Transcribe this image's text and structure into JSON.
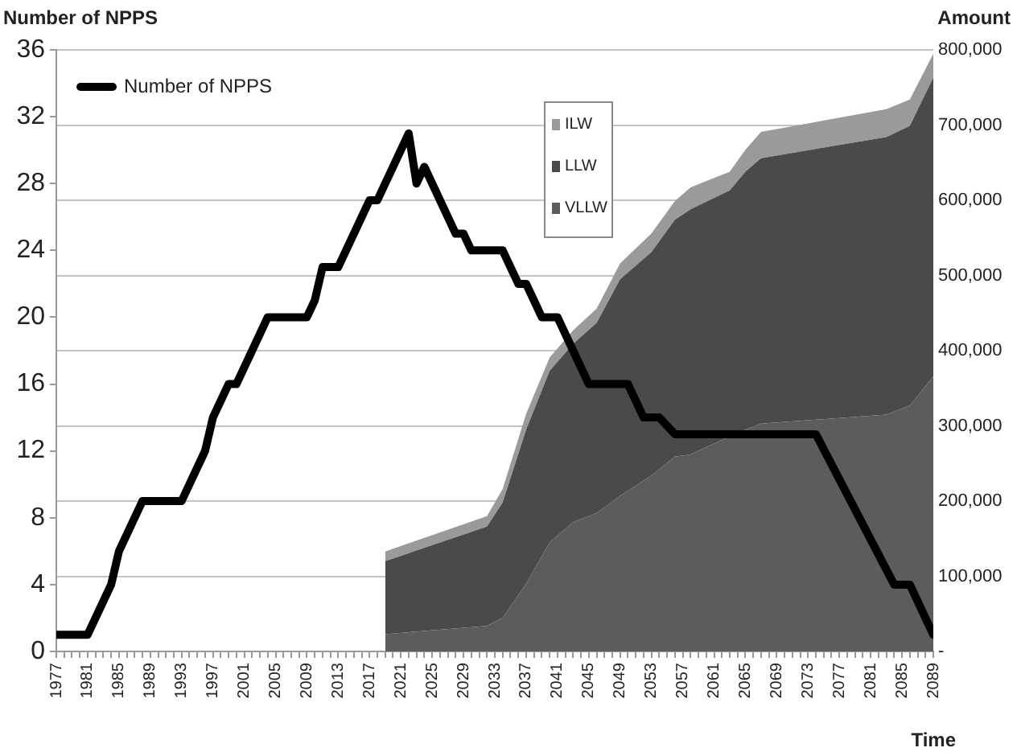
{
  "chart_data": {
    "type": "line",
    "xlabel": "Time",
    "ylabel": "Number of NPPS",
    "y2label": "Amount",
    "xlim": [
      1977,
      2089
    ],
    "xticks": [
      1977,
      {
        "value": 1978,
        "label": null
      },
      {
        "value": 1979,
        "label": null
      },
      {
        "value": 1980,
        "label": null
      },
      1981,
      {
        "value": 1982,
        "label": null
      },
      {
        "value": 1983,
        "label": null
      },
      {
        "value": 1984,
        "label": null
      },
      1985,
      {
        "value": 1986,
        "label": null
      },
      {
        "value": 1987,
        "label": null
      },
      {
        "value": 1988,
        "label": null
      },
      1989,
      {
        "value": 1990,
        "label": null
      },
      {
        "value": 1991,
        "label": null
      },
      {
        "value": 1992,
        "label": null
      },
      1993,
      {
        "value": 1994,
        "label": null
      },
      {
        "value": 1995,
        "label": null
      },
      {
        "value": 1996,
        "label": null
      },
      1997,
      {
        "value": 1998,
        "label": null
      },
      {
        "value": 1999,
        "label": null
      },
      {
        "value": 2000,
        "label": null
      },
      2001,
      {
        "value": 2002,
        "label": null
      },
      {
        "value": 2003,
        "label": null
      },
      {
        "value": 2004,
        "label": null
      },
      2005,
      {
        "value": 2006,
        "label": null
      },
      {
        "value": 2007,
        "label": null
      },
      {
        "value": 2008,
        "label": null
      },
      2009,
      {
        "value": 2010,
        "label": null
      },
      {
        "value": 2011,
        "label": null
      },
      {
        "value": 2012,
        "label": null
      },
      2013,
      {
        "value": 2014,
        "label": null
      },
      {
        "value": 2015,
        "label": null
      },
      {
        "value": 2016,
        "label": null
      },
      2017,
      {
        "value": 2018,
        "label": null
      },
      {
        "value": 2019,
        "label": null
      },
      {
        "value": 2020,
        "label": null
      },
      2021,
      {
        "value": 2022,
        "label": null
      },
      {
        "value": 2023,
        "label": null
      },
      {
        "value": 2024,
        "label": null
      },
      2025,
      {
        "value": 2026,
        "label": null
      },
      {
        "value": 2027,
        "label": null
      },
      {
        "value": 2028,
        "label": null
      },
      2029,
      {
        "value": 2030,
        "label": null
      },
      {
        "value": 2031,
        "label": null
      },
      {
        "value": 2032,
        "label": null
      },
      2033,
      {
        "value": 2034,
        "label": null
      },
      {
        "value": 2035,
        "label": null
      },
      {
        "value": 2036,
        "label": null
      },
      2037,
      {
        "value": 2038,
        "label": null
      },
      {
        "value": 2039,
        "label": null
      },
      {
        "value": 2040,
        "label": null
      },
      2041,
      {
        "value": 2042,
        "label": null
      },
      {
        "value": 2043,
        "label": null
      },
      {
        "value": 2044,
        "label": null
      },
      2045,
      {
        "value": 2046,
        "label": null
      },
      {
        "value": 2047,
        "label": null
      },
      {
        "value": 2048,
        "label": null
      },
      2049,
      {
        "value": 2050,
        "label": null
      },
      {
        "value": 2051,
        "label": null
      },
      {
        "value": 2052,
        "label": null
      },
      2053,
      {
        "value": 2054,
        "label": null
      },
      {
        "value": 2055,
        "label": null
      },
      {
        "value": 2056,
        "label": null
      },
      2057,
      {
        "value": 2058,
        "label": null
      },
      {
        "value": 2059,
        "label": null
      },
      {
        "value": 2060,
        "label": null
      },
      2061,
      {
        "value": 2062,
        "label": null
      },
      {
        "value": 2063,
        "label": null
      },
      {
        "value": 2064,
        "label": null
      },
      2065,
      {
        "value": 2066,
        "label": null
      },
      {
        "value": 2067,
        "label": null
      },
      {
        "value": 2068,
        "label": null
      },
      2069,
      {
        "value": 2070,
        "label": null
      },
      {
        "value": 2071,
        "label": null
      },
      {
        "value": 2072,
        "label": null
      },
      2073,
      {
        "value": 2074,
        "label": null
      },
      {
        "value": 2075,
        "label": null
      },
      {
        "value": 2076,
        "label": null
      },
      2077,
      {
        "value": 2078,
        "label": null
      },
      {
        "value": 2079,
        "label": null
      },
      {
        "value": 2080,
        "label": null
      },
      2081,
      {
        "value": 2082,
        "label": null
      },
      {
        "value": 2083,
        "label": null
      },
      {
        "value": 2084,
        "label": null
      },
      2085,
      {
        "value": 2086,
        "label": null
      },
      {
        "value": 2087,
        "label": null
      },
      {
        "value": 2088,
        "label": null
      },
      2089
    ],
    "ylim": [
      0,
      36
    ],
    "yticks": [
      0,
      4,
      8,
      12,
      16,
      20,
      24,
      28,
      32,
      36
    ],
    "y2lim": [
      0,
      800000
    ],
    "y2ticks": [
      {
        "value": 0,
        "label": "-"
      },
      {
        "value": 100000,
        "label": "100,000"
      },
      {
        "value": 200000,
        "label": "200,000"
      },
      {
        "value": 300000,
        "label": "300,000"
      },
      {
        "value": 400000,
        "label": "400,000"
      },
      {
        "value": 500000,
        "label": "500,000"
      },
      {
        "value": 600000,
        "label": "600,000"
      },
      {
        "value": 700000,
        "label": "700,000"
      },
      {
        "value": 800000,
        "label": "800,000"
      }
    ],
    "grid": "y2",
    "legend": "top left",
    "marker": "none",
    "line_style": "solid",
    "stacked": true,
    "series": [
      {
        "name": "Number of NPPS",
        "type": "line",
        "color": "#000000",
        "x": [
          1977,
          1981,
          1984,
          1985,
          1988,
          1993,
          1995,
          1996,
          1997,
          1999,
          2000,
          2004,
          2009,
          2010,
          2011,
          2013,
          2017,
          2018,
          2022,
          2023,
          2024,
          2028,
          2029,
          2030,
          2034,
          2036,
          2037,
          2039,
          2041,
          2045,
          2050,
          2052,
          2054,
          2056,
          2074,
          2084,
          2086,
          2089
        ],
        "values": [
          1,
          1,
          4,
          6,
          9,
          9,
          11,
          12,
          14,
          16,
          16,
          20,
          20,
          21,
          23,
          23,
          27,
          27,
          31,
          28,
          29,
          25,
          25,
          24,
          24,
          22,
          22,
          20,
          20,
          16,
          16,
          14,
          14,
          13,
          13,
          4,
          4,
          1
        ]
      },
      {
        "name": "VLLW",
        "type": "area",
        "axis": "y2",
        "color": "#5c5c5c",
        "x": [
          2019,
          2032,
          2034,
          2037,
          2040,
          2043,
          2046,
          2049,
          2053,
          2056,
          2058,
          2063,
          2065,
          2067,
          2083,
          2086,
          2089
        ],
        "values": [
          23000,
          34000,
          45000,
          90000,
          145000,
          172000,
          184000,
          207000,
          234000,
          259000,
          262000,
          286000,
          295000,
          303000,
          315000,
          327000,
          366000
        ]
      },
      {
        "name": "LLW",
        "type": "area",
        "axis": "y2",
        "color": "#4a4a4a",
        "x": [
          2019,
          2032,
          2034,
          2037,
          2040,
          2043,
          2046,
          2049,
          2053,
          2056,
          2058,
          2063,
          2065,
          2067,
          2083,
          2086,
          2089
        ],
        "values": [
          97000,
          132000,
          153000,
          205000,
          228000,
          237000,
          253000,
          288000,
          297000,
          315000,
          326000,
          327000,
          343000,
          353000,
          369000,
          372000,
          397000
        ]
      },
      {
        "name": "ILW",
        "type": "area",
        "axis": "y2",
        "color": "#9a9a9a",
        "x": [
          2019,
          2032,
          2034,
          2037,
          2040,
          2043,
          2046,
          2049,
          2053,
          2056,
          2058,
          2063,
          2065,
          2067,
          2083,
          2086,
          2089
        ],
        "values": [
          13000,
          14000,
          18000,
          21000,
          18000,
          18000,
          19000,
          21000,
          25000,
          25000,
          29000,
          25000,
          29000,
          35000,
          37000,
          35000,
          32000
        ]
      }
    ]
  }
}
